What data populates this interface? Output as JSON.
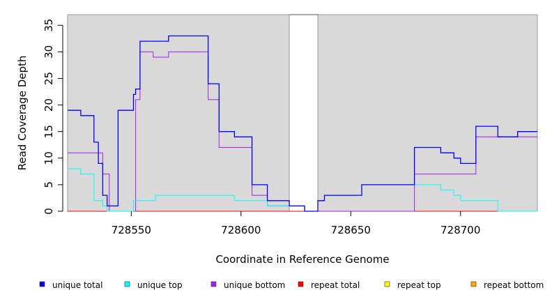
{
  "chart_data": {
    "type": "line",
    "xlabel": "Coordinate in Reference Genome",
    "ylabel": "Read Coverage Depth",
    "xlim": [
      728521,
      728735
    ],
    "ylim": [
      0,
      37
    ],
    "x_ticks": [
      728550,
      728600,
      728650,
      728700
    ],
    "x_tick_labels": [
      "728550",
      "728600",
      "728650",
      "728700"
    ],
    "y_ticks": [
      0,
      5,
      10,
      15,
      20,
      25,
      30,
      35
    ],
    "y_tick_labels": [
      "0",
      "5",
      "10",
      "15",
      "20",
      "25",
      "30",
      "35"
    ],
    "shaded_regions": [
      [
        728521,
        728622
      ],
      [
        728635,
        728735
      ]
    ],
    "background_shade": "#d9d9d9",
    "series": [
      {
        "name": "unique total",
        "color": "#0000ff",
        "x": [
          728521,
          728527,
          728533,
          728535,
          728537,
          728539,
          728540,
          728544,
          728551,
          728552,
          728553,
          728554,
          728567,
          728585,
          728590,
          728597,
          728605,
          728612,
          728622,
          728629,
          728635,
          728638,
          728655,
          728679,
          728691,
          728697,
          728700,
          728707,
          728717,
          728726,
          728735
        ],
        "y": [
          19,
          18,
          13,
          9,
          3,
          1,
          1,
          19,
          22,
          23,
          23,
          32,
          33,
          24,
          15,
          14,
          5,
          2,
          1,
          0,
          2,
          3,
          5,
          12,
          11,
          10,
          9,
          16,
          14,
          15,
          15
        ]
      },
      {
        "name": "unique top",
        "color": "#00ffff",
        "x": [
          728521,
          728527,
          728533,
          728537,
          728539,
          728551,
          728561,
          728597,
          728605,
          728612,
          728622,
          728629,
          728635,
          728638,
          728655,
          728679,
          728691,
          728697,
          728700,
          728717,
          728735
        ],
        "y": [
          8,
          7,
          2,
          1,
          0,
          2,
          3,
          2,
          2,
          1,
          1,
          0,
          2,
          3,
          5,
          5,
          4,
          3,
          2,
          0,
          0
        ]
      },
      {
        "name": "unique bottom",
        "color": "#a020f0",
        "x": [
          728521,
          728535,
          728537,
          728540,
          728552,
          728554,
          728560,
          728567,
          728585,
          728590,
          728605,
          728612,
          728629,
          728679,
          728707,
          728735
        ],
        "y": [
          11,
          11,
          7,
          0,
          21,
          30,
          29,
          30,
          21,
          12,
          3,
          1,
          0,
          7,
          14,
          14
        ]
      },
      {
        "name": "repeat total",
        "color": "#ff0000",
        "x": [
          728521,
          728735
        ],
        "y": [
          0,
          0
        ]
      },
      {
        "name": "repeat top",
        "color": "#ffff00",
        "x": [
          728521,
          728735
        ],
        "y": [
          0,
          0
        ]
      },
      {
        "name": "repeat bottom",
        "color": "#ffa500",
        "x": [
          728521,
          728735
        ],
        "y": [
          0,
          0
        ]
      }
    ],
    "legend_position": "bottom"
  }
}
